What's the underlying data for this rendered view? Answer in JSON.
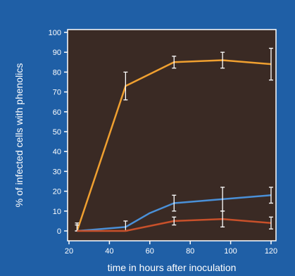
{
  "colors": {
    "outer_background": "#1f5fa6",
    "plot_background": "#3a2a24",
    "axis": "#ffffff",
    "text": "#ffffff",
    "error_bar": "#ffffff"
  },
  "chart_data": {
    "type": "line",
    "title": "",
    "xlabel": "time in hours after inoculation",
    "ylabel": "% of infected cells with phenolics",
    "xlim": [
      20,
      120
    ],
    "ylim": [
      0,
      100
    ],
    "xticks": [
      "20",
      "40",
      "60",
      "80",
      "100",
      "120"
    ],
    "yticks": [
      "0",
      "10",
      "20",
      "30",
      "40",
      "50",
      "60",
      "70",
      "80",
      "90",
      "100"
    ],
    "grid": false,
    "legend": "none",
    "series": [
      {
        "color": "#f0a030",
        "x": [
          24,
          48,
          72,
          96,
          120
        ],
        "y": [
          0,
          73,
          85,
          86,
          84
        ],
        "err": [
          4,
          7,
          3,
          4,
          8
        ]
      },
      {
        "color": "#4a90d8",
        "x": [
          24,
          48,
          60,
          72,
          96,
          120
        ],
        "y": [
          0,
          2,
          9,
          14,
          16,
          18
        ],
        "err": [
          3,
          3,
          null,
          4,
          6,
          4
        ]
      },
      {
        "color": "#c8502a",
        "x": [
          24,
          48,
          72,
          96,
          120
        ],
        "y": [
          0,
          0,
          5,
          6,
          4
        ],
        "err": [
          null,
          null,
          2,
          4,
          3
        ]
      }
    ]
  }
}
